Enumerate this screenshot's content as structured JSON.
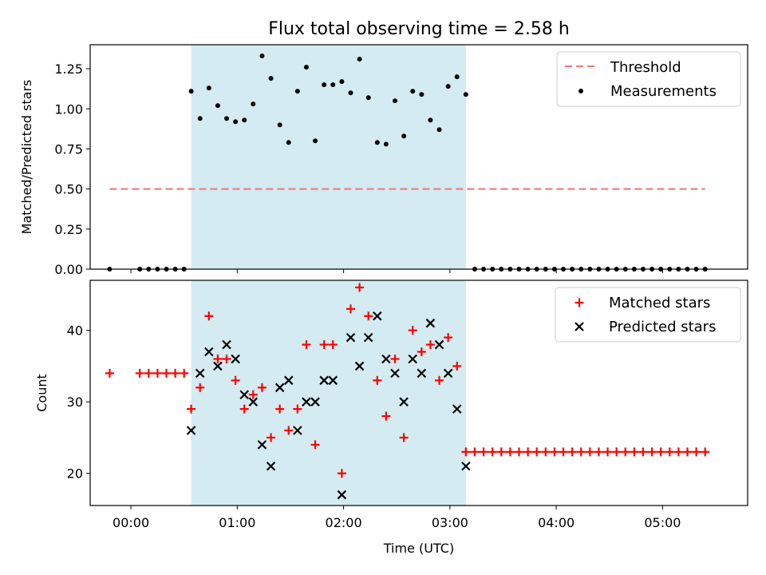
{
  "chart_data": [
    {
      "type": "scatter",
      "title": "Flux total observing time = 2.58 h",
      "xlabel": "",
      "ylabel": "Matched/Predicted stars",
      "ylim": [
        0,
        1.4
      ],
      "yticks": [
        "0.00",
        "0.25",
        "0.50",
        "0.75",
        "1.00",
        "1.25"
      ],
      "ytick_values": [
        0,
        0.25,
        0.5,
        0.75,
        1.0,
        1.25
      ],
      "xlim": [
        "23:37",
        "05:48"
      ],
      "shaded_region": {
        "start": "00:34",
        "end": "03:09",
        "color": "#d3ebf1"
      },
      "legend_position": "upper right",
      "legend": {
        "threshold_label": "Threshold",
        "measurements_label": "Measurements"
      },
      "threshold": {
        "name": "Threshold",
        "value": 0.5,
        "x_start": "23:48",
        "x_end": "05:24",
        "color": "#f08080"
      },
      "series": [
        {
          "name": "Measurements",
          "color": "#000000",
          "points": [
            [
              "23:48",
              0
            ],
            [
              "00:05",
              0
            ],
            [
              "00:10",
              0
            ],
            [
              "00:15",
              0
            ],
            [
              "00:20",
              0
            ],
            [
              "00:25",
              0
            ],
            [
              "00:30",
              0
            ],
            [
              "00:34",
              1.11
            ],
            [
              "00:39",
              0.94
            ],
            [
              "00:44",
              1.13
            ],
            [
              "00:49",
              1.02
            ],
            [
              "00:54",
              0.94
            ],
            [
              "00:59",
              0.92
            ],
            [
              "01:04",
              0.93
            ],
            [
              "01:09",
              1.03
            ],
            [
              "01:14",
              1.33
            ],
            [
              "01:19",
              1.19
            ],
            [
              "01:24",
              0.9
            ],
            [
              "01:29",
              0.79
            ],
            [
              "01:34",
              1.11
            ],
            [
              "01:39",
              1.26
            ],
            [
              "01:44",
              0.8
            ],
            [
              "01:49",
              1.15
            ],
            [
              "01:54",
              1.15
            ],
            [
              "01:59",
              1.17
            ],
            [
              "02:04",
              1.1
            ],
            [
              "02:09",
              1.31
            ],
            [
              "02:14",
              1.07
            ],
            [
              "02:19",
              0.79
            ],
            [
              "02:24",
              0.78
            ],
            [
              "02:29",
              1.05
            ],
            [
              "02:34",
              0.83
            ],
            [
              "02:39",
              1.11
            ],
            [
              "02:44",
              1.09
            ],
            [
              "02:49",
              0.93
            ],
            [
              "02:54",
              0.87
            ],
            [
              "02:59",
              1.14
            ],
            [
              "03:04",
              1.2
            ],
            [
              "03:09",
              1.09
            ],
            [
              "03:14",
              0
            ],
            [
              "03:19",
              0
            ],
            [
              "03:24",
              0
            ],
            [
              "03:29",
              0
            ],
            [
              "03:34",
              0
            ],
            [
              "03:39",
              0
            ],
            [
              "03:44",
              0
            ],
            [
              "03:49",
              0
            ],
            [
              "03:54",
              0
            ],
            [
              "03:59",
              0
            ],
            [
              "04:04",
              0
            ],
            [
              "04:09",
              0
            ],
            [
              "04:14",
              0
            ],
            [
              "04:19",
              0
            ],
            [
              "04:24",
              0
            ],
            [
              "04:29",
              0
            ],
            [
              "04:34",
              0
            ],
            [
              "04:39",
              0
            ],
            [
              "04:44",
              0
            ],
            [
              "04:49",
              0
            ],
            [
              "04:54",
              0
            ],
            [
              "04:59",
              0
            ],
            [
              "05:04",
              0
            ],
            [
              "05:09",
              0
            ],
            [
              "05:14",
              0
            ],
            [
              "05:19",
              0
            ],
            [
              "05:24",
              0
            ]
          ]
        }
      ]
    },
    {
      "type": "scatter",
      "title": "",
      "xlabel": "Time (UTC)",
      "ylabel": "Count",
      "ylim": [
        15.5,
        47
      ],
      "yticks": [
        "20",
        "30",
        "40"
      ],
      "ytick_values": [
        20,
        30,
        40
      ],
      "xlim": [
        "23:37",
        "05:48"
      ],
      "xticks": [
        "00:00",
        "01:00",
        "02:00",
        "03:00",
        "04:00",
        "05:00"
      ],
      "shaded_region": {
        "start": "00:34",
        "end": "03:09",
        "color": "#d3ebf1"
      },
      "legend_position": "upper right",
      "legend": {
        "matched_label": "Matched stars",
        "predicted_label": "Predicted stars"
      },
      "series": [
        {
          "name": "Matched stars",
          "marker": "+",
          "color": "#ff0000",
          "points": [
            [
              "23:48",
              34
            ],
            [
              "00:05",
              34
            ],
            [
              "00:10",
              34
            ],
            [
              "00:15",
              34
            ],
            [
              "00:20",
              34
            ],
            [
              "00:25",
              34
            ],
            [
              "00:30",
              34
            ],
            [
              "00:34",
              29
            ],
            [
              "00:39",
              32
            ],
            [
              "00:44",
              42
            ],
            [
              "00:49",
              36
            ],
            [
              "00:54",
              36
            ],
            [
              "00:59",
              33
            ],
            [
              "01:04",
              29
            ],
            [
              "01:09",
              31
            ],
            [
              "01:14",
              32
            ],
            [
              "01:19",
              25
            ],
            [
              "01:24",
              29
            ],
            [
              "01:29",
              26
            ],
            [
              "01:34",
              29
            ],
            [
              "01:39",
              38
            ],
            [
              "01:44",
              24
            ],
            [
              "01:49",
              38
            ],
            [
              "01:54",
              38
            ],
            [
              "01:59",
              20
            ],
            [
              "02:04",
              43
            ],
            [
              "02:09",
              46
            ],
            [
              "02:14",
              42
            ],
            [
              "02:19",
              33
            ],
            [
              "02:24",
              28
            ],
            [
              "02:29",
              36
            ],
            [
              "02:34",
              25
            ],
            [
              "02:39",
              40
            ],
            [
              "02:44",
              37
            ],
            [
              "02:49",
              38
            ],
            [
              "02:54",
              33
            ],
            [
              "02:59",
              39
            ],
            [
              "03:04",
              35
            ],
            [
              "03:09",
              23
            ],
            [
              "03:14",
              23
            ],
            [
              "03:19",
              23
            ],
            [
              "03:24",
              23
            ],
            [
              "03:29",
              23
            ],
            [
              "03:34",
              23
            ],
            [
              "03:39",
              23
            ],
            [
              "03:44",
              23
            ],
            [
              "03:49",
              23
            ],
            [
              "03:54",
              23
            ],
            [
              "03:59",
              23
            ],
            [
              "04:04",
              23
            ],
            [
              "04:09",
              23
            ],
            [
              "04:14",
              23
            ],
            [
              "04:19",
              23
            ],
            [
              "04:24",
              23
            ],
            [
              "04:29",
              23
            ],
            [
              "04:34",
              23
            ],
            [
              "04:39",
              23
            ],
            [
              "04:44",
              23
            ],
            [
              "04:49",
              23
            ],
            [
              "04:54",
              23
            ],
            [
              "04:59",
              23
            ],
            [
              "05:04",
              23
            ],
            [
              "05:09",
              23
            ],
            [
              "05:14",
              23
            ],
            [
              "05:19",
              23
            ],
            [
              "05:24",
              23
            ]
          ]
        },
        {
          "name": "Predicted stars",
          "marker": "x",
          "color": "#000000",
          "points": [
            [
              "00:34",
              26
            ],
            [
              "00:39",
              34
            ],
            [
              "00:44",
              37
            ],
            [
              "00:49",
              35
            ],
            [
              "00:54",
              38
            ],
            [
              "00:59",
              36
            ],
            [
              "01:04",
              31
            ],
            [
              "01:09",
              30
            ],
            [
              "01:14",
              24
            ],
            [
              "01:19",
              21
            ],
            [
              "01:24",
              32
            ],
            [
              "01:29",
              33
            ],
            [
              "01:34",
              26
            ],
            [
              "01:39",
              30
            ],
            [
              "01:44",
              30
            ],
            [
              "01:49",
              33
            ],
            [
              "01:54",
              33
            ],
            [
              "01:59",
              17
            ],
            [
              "02:04",
              39
            ],
            [
              "02:09",
              35
            ],
            [
              "02:14",
              39
            ],
            [
              "02:19",
              42
            ],
            [
              "02:24",
              36
            ],
            [
              "02:29",
              34
            ],
            [
              "02:34",
              30
            ],
            [
              "02:39",
              36
            ],
            [
              "02:44",
              34
            ],
            [
              "02:49",
              41
            ],
            [
              "02:54",
              38
            ],
            [
              "02:59",
              34
            ],
            [
              "03:04",
              29
            ],
            [
              "03:09",
              21
            ]
          ]
        }
      ]
    }
  ]
}
